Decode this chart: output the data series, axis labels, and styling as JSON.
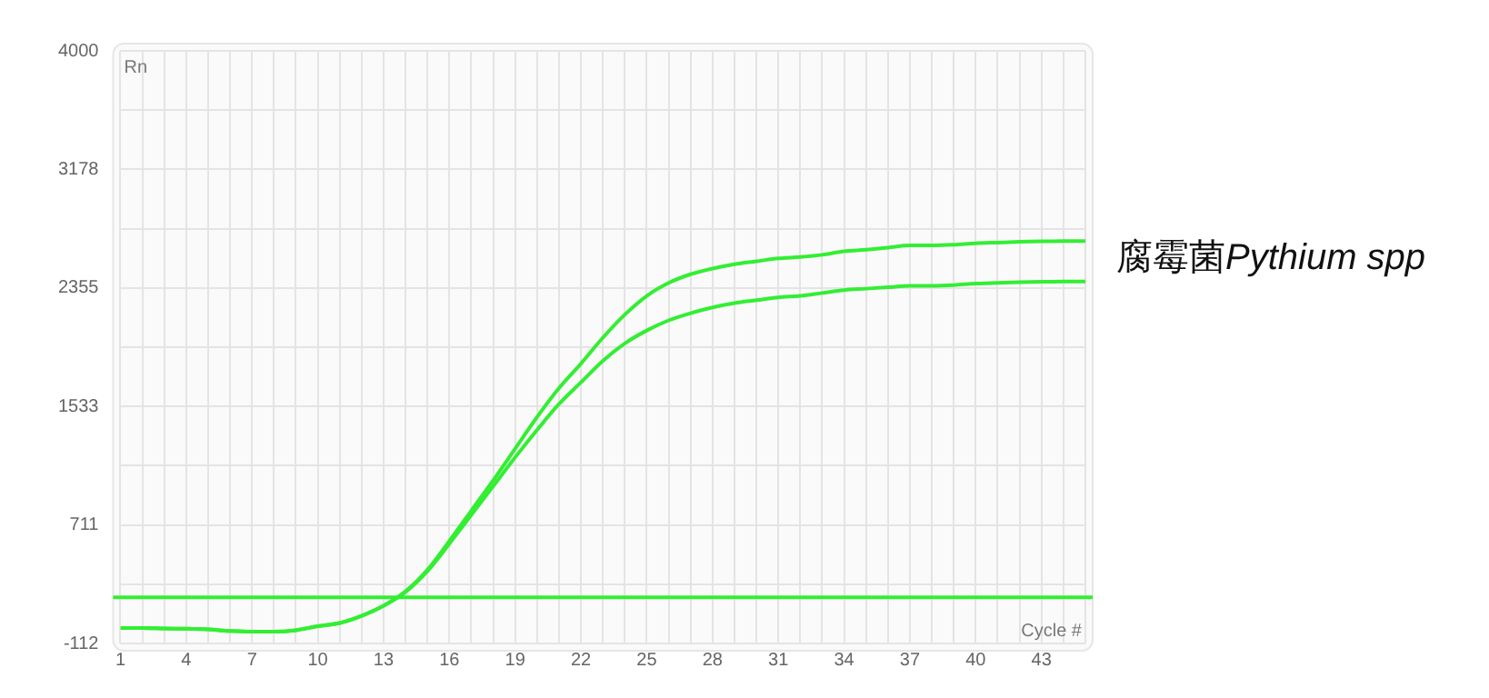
{
  "chart_data": {
    "type": "line",
    "xlabel": "Cycle #",
    "ylabel": "Rn",
    "annotations": [
      "腐霉菌Pythium spp"
    ],
    "x": [
      1,
      2,
      3,
      4,
      5,
      6,
      7,
      8,
      9,
      10,
      11,
      12,
      13,
      14,
      15,
      16,
      17,
      18,
      19,
      20,
      21,
      22,
      23,
      24,
      25,
      26,
      27,
      28,
      29,
      30,
      31,
      32,
      33,
      34,
      35,
      36,
      37,
      38,
      39,
      40,
      41,
      42,
      43,
      44,
      45
    ],
    "series": [
      {
        "color": "#33ee33",
        "values": [
          -5,
          -5,
          -8,
          -10,
          -15,
          -25,
          -30,
          -30,
          -20,
          8,
          30,
          80,
          150,
          250,
          400,
          600,
          810,
          1020,
          1240,
          1460,
          1660,
          1830,
          2010,
          2170,
          2300,
          2390,
          2450,
          2490,
          2520,
          2540,
          2560,
          2570,
          2585,
          2610,
          2620,
          2635,
          2650,
          2650,
          2655,
          2665,
          2670,
          2675,
          2678,
          2680,
          2680
        ]
      },
      {
        "color": "#33ee33",
        "values": [
          -5,
          -5,
          -8,
          -10,
          -15,
          -25,
          -30,
          -30,
          -20,
          8,
          30,
          80,
          150,
          245,
          390,
          580,
          780,
          980,
          1180,
          1370,
          1550,
          1700,
          1850,
          1970,
          2060,
          2130,
          2180,
          2220,
          2250,
          2270,
          2290,
          2300,
          2320,
          2340,
          2350,
          2360,
          2370,
          2370,
          2375,
          2385,
          2390,
          2395,
          2398,
          2400,
          2400
        ]
      }
    ],
    "ref_lines": [
      {
        "axis": "y",
        "value": 208,
        "color": "#33ee33"
      }
    ],
    "xlim": [
      1,
      45
    ],
    "xticks": [
      1,
      {
        "value": 2,
        "label": null
      },
      {
        "value": 3,
        "label": null
      },
      4,
      {
        "value": 5,
        "label": null
      },
      {
        "value": 6,
        "label": null
      },
      7,
      {
        "value": 8,
        "label": null
      },
      {
        "value": 9,
        "label": null
      },
      10,
      {
        "value": 11,
        "label": null
      },
      {
        "value": 12,
        "label": null
      },
      13,
      {
        "value": 14,
        "label": null
      },
      {
        "value": 15,
        "label": null
      },
      16,
      {
        "value": 17,
        "label": null
      },
      {
        "value": 18,
        "label": null
      },
      19,
      {
        "value": 20,
        "label": null
      },
      {
        "value": 21,
        "label": null
      },
      22,
      {
        "value": 23,
        "label": null
      },
      {
        "value": 24,
        "label": null
      },
      25,
      {
        "value": 26,
        "label": null
      },
      {
        "value": 27,
        "label": null
      },
      28,
      {
        "value": 29,
        "label": null
      },
      {
        "value": 30,
        "label": null
      },
      31,
      {
        "value": 32,
        "label": null
      },
      {
        "value": 33,
        "label": null
      },
      34,
      {
        "value": 35,
        "label": null
      },
      {
        "value": 36,
        "label": null
      },
      37,
      {
        "value": 38,
        "label": null
      },
      {
        "value": 39,
        "label": null
      },
      40,
      {
        "value": 41,
        "label": null
      },
      {
        "value": 42,
        "label": null
      },
      43,
      {
        "value": 44,
        "label": null
      },
      {
        "value": 45,
        "label": null
      }
    ],
    "ylim": [
      -112,
      4000
    ],
    "yticks": [
      -112,
      {
        "value": 299.5,
        "label": null
      },
      711,
      {
        "value": 1122,
        "label": null
      },
      1533,
      {
        "value": 1944,
        "label": null
      },
      2355,
      {
        "value": 2766.5,
        "label": null
      },
      3178,
      {
        "value": 3589,
        "label": null
      },
      4000
    ],
    "grid": true,
    "marker": "none",
    "line_style": "solid",
    "legend": false
  }
}
